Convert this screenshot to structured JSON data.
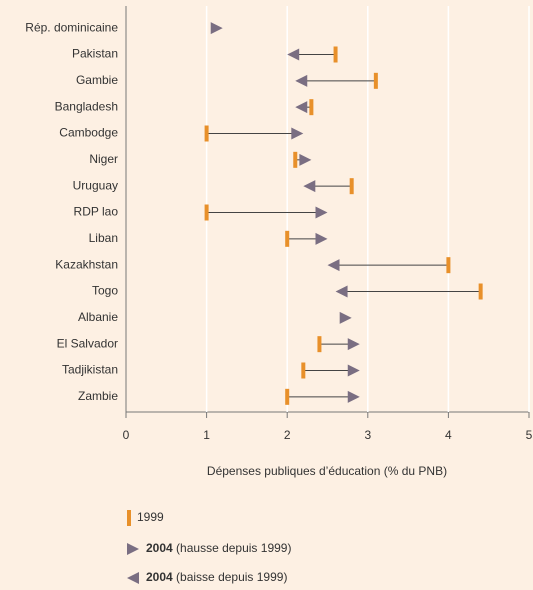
{
  "chart_data": {
    "type": "dumbbell",
    "xlabel": "Dépenses publiques d’éducation (% du PNB)",
    "categories": [
      "Rép. dominicaine",
      "Pakistan",
      "Gambie",
      "Bangladesh",
      "Cambodge",
      "Niger",
      "Uruguay",
      "RDP lao",
      "Liban",
      "Kazakhstan",
      "Togo",
      "Albanie",
      "El Salvador",
      "Tadjikistan",
      "Zambie"
    ],
    "series": [
      {
        "name": "1999",
        "color": "#e8902a",
        "values": [
          null,
          2.6,
          3.1,
          2.3,
          1.0,
          2.1,
          2.8,
          1.0,
          2.0,
          4.0,
          4.4,
          null,
          2.4,
          2.2,
          2.0
        ]
      },
      {
        "name": "2004",
        "color": "#7a6e82",
        "values": [
          1.2,
          2.0,
          2.1,
          2.1,
          2.2,
          2.3,
          2.2,
          2.5,
          2.5,
          2.5,
          2.6,
          2.8,
          2.9,
          2.9,
          2.9
        ]
      }
    ],
    "legend_notes": {
      "up": "(hausse depuis 1999)",
      "down": "(baisse depuis 1999)"
    },
    "xlim": [
      0,
      5
    ],
    "xticks": [
      0,
      1,
      2,
      3,
      4,
      5
    ],
    "grid": true
  }
}
